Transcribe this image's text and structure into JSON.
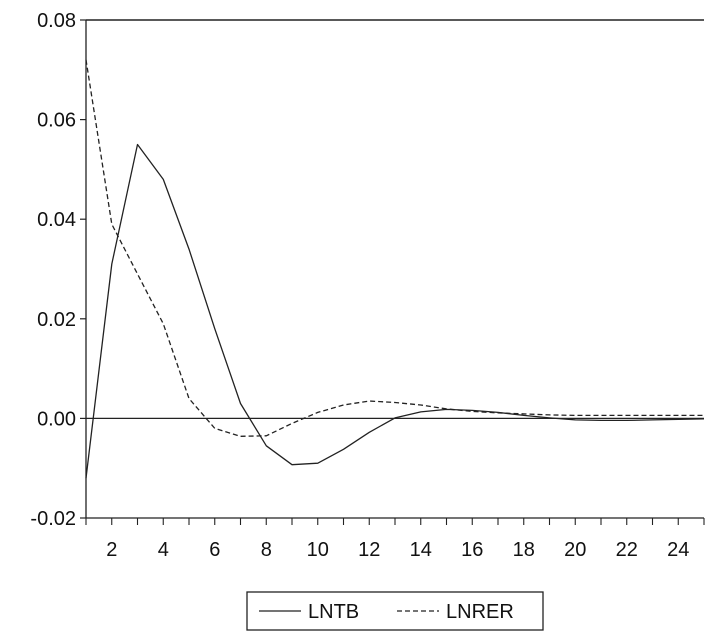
{
  "chart_data": {
    "type": "line",
    "title": "",
    "xlabel": "",
    "ylabel": "",
    "x": [
      1,
      2,
      3,
      4,
      5,
      6,
      7,
      8,
      9,
      10,
      11,
      12,
      13,
      14,
      15,
      16,
      17,
      18,
      19,
      20,
      21,
      22,
      23,
      24,
      25
    ],
    "xlim": [
      1,
      25
    ],
    "ylim": [
      -0.02,
      0.08
    ],
    "x_tick_labels": [
      "2",
      "4",
      "6",
      "8",
      "10",
      "12",
      "14",
      "16",
      "18",
      "20",
      "22",
      "24"
    ],
    "x_tick_values": [
      2,
      4,
      6,
      8,
      10,
      12,
      14,
      16,
      18,
      20,
      22,
      24
    ],
    "y_tick_labels": [
      "-0.02",
      "0.00",
      "0.02",
      "0.04",
      "0.06",
      "0.08"
    ],
    "y_tick_values": [
      -0.02,
      0.0,
      0.02,
      0.04,
      0.06,
      0.08
    ],
    "zero_line": true,
    "grid": false,
    "legend_position": "bottom",
    "series": [
      {
        "name": "LNTB",
        "style": "solid",
        "color": "#222222",
        "values": [
          -0.012,
          0.031,
          0.055,
          0.048,
          0.034,
          0.018,
          0.003,
          -0.0055,
          -0.0093,
          -0.009,
          -0.0062,
          -0.0028,
          0.0001,
          0.0013,
          0.0018,
          0.0016,
          0.0012,
          0.0006,
          0.0001,
          -0.0003,
          -0.0004,
          -0.0004,
          -0.0003,
          -0.0002,
          -0.0001
        ]
      },
      {
        "name": "LNRER",
        "style": "dashed",
        "color": "#222222",
        "values": [
          0.072,
          0.039,
          0.029,
          0.019,
          0.004,
          -0.002,
          -0.0036,
          -0.0035,
          -0.001,
          0.0012,
          0.0027,
          0.0035,
          0.0032,
          0.0027,
          0.0019,
          0.0014,
          0.0011,
          0.0009,
          0.0007,
          0.0006,
          0.0006,
          0.0006,
          0.0006,
          0.0006,
          0.0006
        ]
      }
    ]
  }
}
